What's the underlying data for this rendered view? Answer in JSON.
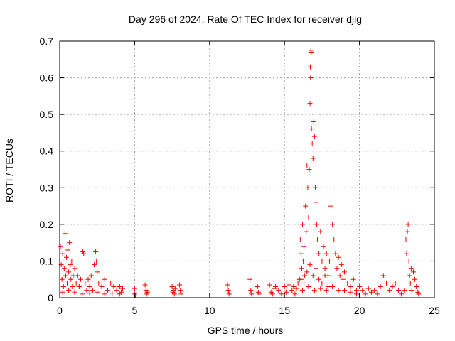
{
  "chart_data": {
    "type": "scatter",
    "title": "Day 296 of 2024, Rate Of TEC Index for receiver djig",
    "xlabel": "GPS time / hours",
    "ylabel": "ROTI / TECUs",
    "xlim": [
      0,
      25
    ],
    "ylim": [
      0,
      0.7
    ],
    "xticks": [
      "0",
      "5",
      "10",
      "15",
      "20",
      "25"
    ],
    "xtick_values": [
      0,
      5,
      10,
      15,
      20,
      25
    ],
    "yticks": [
      "0",
      "0.1",
      "0.2",
      "0.3",
      "0.4",
      "0.5",
      "0.6",
      "0.7"
    ],
    "ytick_values": [
      0,
      0.1,
      0.2,
      0.3,
      0.4,
      0.5,
      0.6,
      0.7
    ],
    "grid": true,
    "marker": "plus",
    "color": "#ff0000",
    "points": [
      [
        0.05,
        0.14
      ],
      [
        0.1,
        0.09
      ],
      [
        0.15,
        0.05
      ],
      [
        0.2,
        0.12
      ],
      [
        0.25,
        0.03
      ],
      [
        0.3,
        0.08
      ],
      [
        0.35,
        0.175
      ],
      [
        0.4,
        0.06
      ],
      [
        0.45,
        0.11
      ],
      [
        0.5,
        0.04
      ],
      [
        0.55,
        0.13
      ],
      [
        0.6,
        0.07
      ],
      [
        0.65,
        0.15
      ],
      [
        0.7,
        0.09
      ],
      [
        0.75,
        0.05
      ],
      [
        0.8,
        0.1
      ],
      [
        0.85,
        0.03
      ],
      [
        0.9,
        0.06
      ],
      [
        1.0,
        0.08
      ],
      [
        1.1,
        0.04
      ],
      [
        1.2,
        0.06
      ],
      [
        1.3,
        0.03
      ],
      [
        1.4,
        0.05
      ],
      [
        1.55,
        0.125
      ],
      [
        1.6,
        0.12
      ],
      [
        1.7,
        0.04
      ],
      [
        1.8,
        0.02
      ],
      [
        1.9,
        0.05
      ],
      [
        2.0,
        0.03
      ],
      [
        2.1,
        0.06
      ],
      [
        2.2,
        0.02
      ],
      [
        2.3,
        0.09
      ],
      [
        2.4,
        0.125
      ],
      [
        2.45,
        0.1
      ],
      [
        2.5,
        0.07
      ],
      [
        2.6,
        0.04
      ],
      [
        2.8,
        0.03
      ],
      [
        3.0,
        0.05
      ],
      [
        3.2,
        0.02
      ],
      [
        3.4,
        0.04
      ],
      [
        3.6,
        0.03
      ],
      [
        3.8,
        0.02
      ],
      [
        4.0,
        0.03
      ],
      [
        4.1,
        0.015
      ],
      [
        4.2,
        0.025
      ],
      [
        0.2,
        0.015
      ],
      [
        0.6,
        0.02
      ],
      [
        1.0,
        0.015
      ],
      [
        1.5,
        0.01
      ],
      [
        2.0,
        0.012
      ],
      [
        2.5,
        0.015
      ],
      [
        3.0,
        0.01
      ],
      [
        3.5,
        0.012
      ],
      [
        4.0,
        0.01
      ],
      [
        5.0,
        0.025
      ],
      [
        5.0,
        0.01
      ],
      [
        5.05,
        0.005
      ],
      [
        5.7,
        0.035
      ],
      [
        5.75,
        0.02
      ],
      [
        5.8,
        0.01
      ],
      [
        5.85,
        0.015
      ],
      [
        7.5,
        0.03
      ],
      [
        7.55,
        0.015
      ],
      [
        7.6,
        0.02
      ],
      [
        7.65,
        0.01
      ],
      [
        7.7,
        0.025
      ],
      [
        8.0,
        0.035
      ],
      [
        8.05,
        0.02
      ],
      [
        8.1,
        0.01
      ],
      [
        11.2,
        0.035
      ],
      [
        11.25,
        0.02
      ],
      [
        11.3,
        0.01
      ],
      [
        12.7,
        0.05
      ],
      [
        12.75,
        0.02
      ],
      [
        12.8,
        0.01
      ],
      [
        13.2,
        0.03
      ],
      [
        13.25,
        0.015
      ],
      [
        13.3,
        0.01
      ],
      [
        14.0,
        0.035
      ],
      [
        14.1,
        0.015
      ],
      [
        14.2,
        0.01
      ],
      [
        14.3,
        0.025
      ],
      [
        14.4,
        0.03
      ],
      [
        14.6,
        0.02
      ],
      [
        14.8,
        0.01
      ],
      [
        15.0,
        0.03
      ],
      [
        15.1,
        0.015
      ],
      [
        15.3,
        0.035
      ],
      [
        15.5,
        0.02
      ],
      [
        15.6,
        0.03
      ],
      [
        15.7,
        0.01
      ],
      [
        15.8,
        0.025
      ],
      [
        15.9,
        0.04
      ],
      [
        16.0,
        0.05
      ],
      [
        16.05,
        0.16
      ],
      [
        16.1,
        0.12
      ],
      [
        16.15,
        0.08
      ],
      [
        16.2,
        0.2
      ],
      [
        16.25,
        0.1
      ],
      [
        16.3,
        0.14
      ],
      [
        16.35,
        0.06
      ],
      [
        16.4,
        0.25
      ],
      [
        16.45,
        0.18
      ],
      [
        16.5,
        0.36
      ],
      [
        16.55,
        0.3
      ],
      [
        16.6,
        0.22
      ],
      [
        16.65,
        0.35
      ],
      [
        16.7,
        0.53
      ],
      [
        16.72,
        0.63
      ],
      [
        16.74,
        0.6
      ],
      [
        16.76,
        0.675
      ],
      [
        16.78,
        0.67
      ],
      [
        16.8,
        0.46
      ],
      [
        16.85,
        0.42
      ],
      [
        16.9,
        0.38
      ],
      [
        16.95,
        0.48
      ],
      [
        17.0,
        0.44
      ],
      [
        17.05,
        0.3
      ],
      [
        17.1,
        0.26
      ],
      [
        17.15,
        0.2
      ],
      [
        17.2,
        0.16
      ],
      [
        17.3,
        0.12
      ],
      [
        17.4,
        0.18
      ],
      [
        17.5,
        0.1
      ],
      [
        17.6,
        0.14
      ],
      [
        17.7,
        0.08
      ],
      [
        17.8,
        0.12
      ],
      [
        17.9,
        0.06
      ],
      [
        18.0,
        0.1
      ],
      [
        18.1,
        0.25
      ],
      [
        18.2,
        0.2
      ],
      [
        18.3,
        0.16
      ],
      [
        18.4,
        0.12
      ],
      [
        18.5,
        0.08
      ],
      [
        18.6,
        0.11
      ],
      [
        18.7,
        0.06
      ],
      [
        18.8,
        0.09
      ],
      [
        18.9,
        0.05
      ],
      [
        19.0,
        0.07
      ],
      [
        19.2,
        0.04
      ],
      [
        19.4,
        0.03
      ],
      [
        19.6,
        0.05
      ],
      [
        19.8,
        0.02
      ],
      [
        20.0,
        0.03
      ],
      [
        16.1,
        0.05
      ],
      [
        16.3,
        0.04
      ],
      [
        16.5,
        0.07
      ],
      [
        16.7,
        0.09
      ],
      [
        16.9,
        0.06
      ],
      [
        17.1,
        0.08
      ],
      [
        17.3,
        0.05
      ],
      [
        17.5,
        0.04
      ],
      [
        17.7,
        0.06
      ],
      [
        17.9,
        0.03
      ],
      [
        16.2,
        0.02
      ],
      [
        16.6,
        0.03
      ],
      [
        17.0,
        0.02
      ],
      [
        17.4,
        0.025
      ],
      [
        17.8,
        0.02
      ],
      [
        18.2,
        0.03
      ],
      [
        18.6,
        0.02
      ],
      [
        19.0,
        0.02
      ],
      [
        19.4,
        0.015
      ],
      [
        19.8,
        0.01
      ],
      [
        20.2,
        0.02
      ],
      [
        20.4,
        0.01
      ],
      [
        20.6,
        0.025
      ],
      [
        20.8,
        0.015
      ],
      [
        21.0,
        0.02
      ],
      [
        21.2,
        0.01
      ],
      [
        21.4,
        0.03
      ],
      [
        21.6,
        0.06
      ],
      [
        21.8,
        0.04
      ],
      [
        22.0,
        0.02
      ],
      [
        22.2,
        0.03
      ],
      [
        22.4,
        0.04
      ],
      [
        22.6,
        0.02
      ],
      [
        22.8,
        0.01
      ],
      [
        23.0,
        0.02
      ],
      [
        23.1,
        0.16
      ],
      [
        23.15,
        0.12
      ],
      [
        23.2,
        0.18
      ],
      [
        23.25,
        0.2
      ],
      [
        23.3,
        0.1
      ],
      [
        23.35,
        0.06
      ],
      [
        23.4,
        0.04
      ],
      [
        23.45,
        0.08
      ],
      [
        23.5,
        0.02
      ],
      [
        23.6,
        0.07
      ],
      [
        23.7,
        0.05
      ],
      [
        23.8,
        0.03
      ],
      [
        23.9,
        0.015
      ],
      [
        23.95,
        0.01
      ]
    ]
  }
}
